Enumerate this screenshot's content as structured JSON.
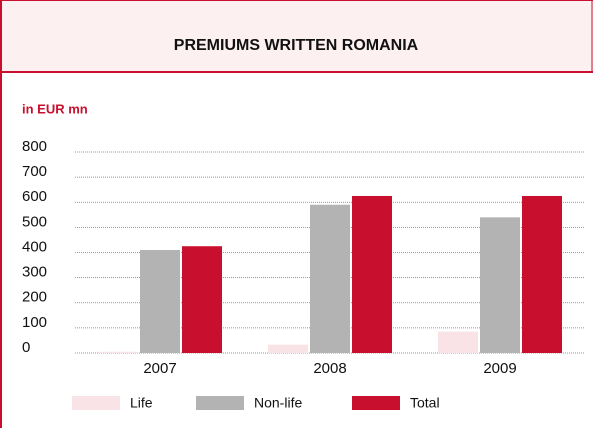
{
  "chart_data": {
    "type": "bar",
    "title": "PREMIUMS WRITTEN ROMANIA",
    "subtitle": "in EUR mn",
    "categories": [
      "2007",
      "2008",
      "2009"
    ],
    "series": [
      {
        "name": "Life",
        "color": "#f9e3e6",
        "values": [
          5,
          33,
          85
        ]
      },
      {
        "name": "Non-life",
        "color": "#b3b3b3",
        "values": [
          410,
          590,
          540
        ]
      },
      {
        "name": "Total",
        "color": "#c8102e",
        "values": [
          425,
          625,
          625
        ]
      }
    ],
    "ylim": [
      0,
      800
    ],
    "yticks": [
      0,
      100,
      200,
      300,
      400,
      500,
      600,
      700,
      800
    ],
    "grid": true,
    "legend": "bottom"
  }
}
